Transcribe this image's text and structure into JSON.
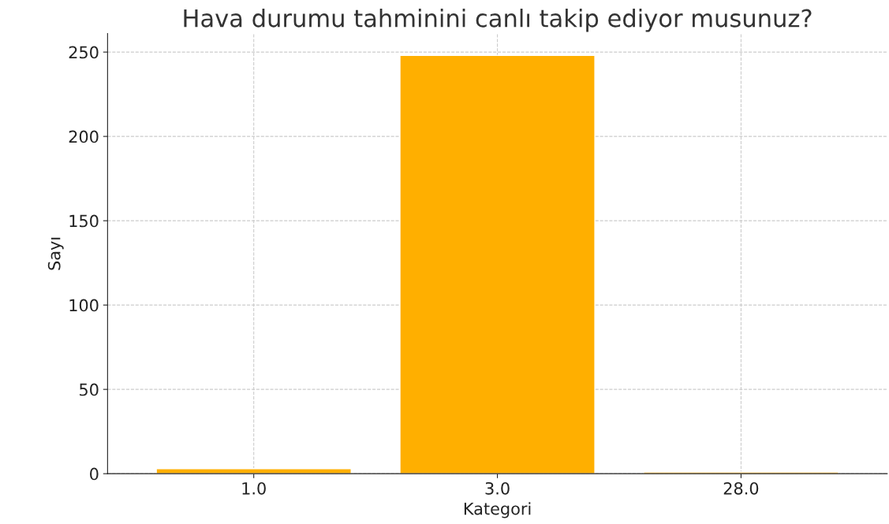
{
  "chart_data": {
    "type": "bar",
    "title": "Hava durumu tahminini canlı takip ediyor musunuz?",
    "xlabel": "Kategori",
    "ylabel": "Sayı",
    "categories": [
      "1.0",
      "3.0",
      "28.0"
    ],
    "values": [
      3,
      248,
      1
    ],
    "color": "#ffaf00",
    "ylim": [
      0,
      261
    ],
    "yticks": [
      0,
      50,
      100,
      150,
      200,
      250
    ],
    "grid": true
  }
}
